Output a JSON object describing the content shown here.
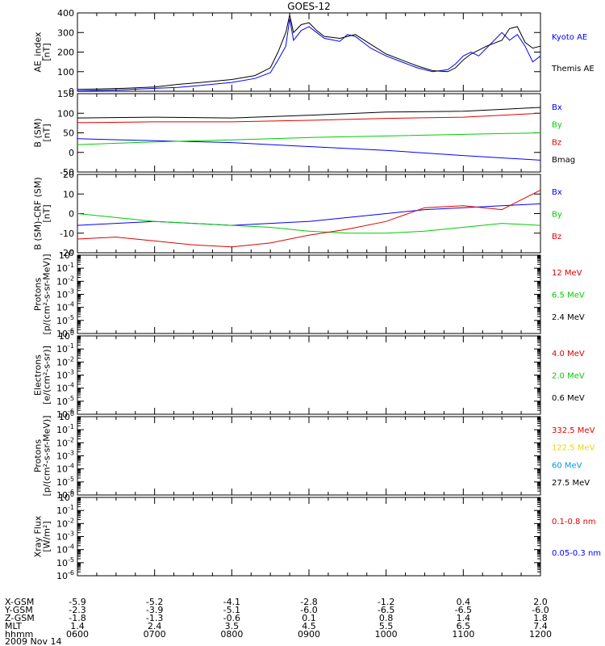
{
  "title": "GOES-12",
  "colors": {
    "black": "#000000",
    "blue": "#0000ff",
    "red": "#e00000",
    "green": "#00cc00",
    "yellow": "#e8d800",
    "cyan": "#0099dd"
  },
  "chart_data": [
    {
      "type": "line",
      "ylabel": "AE_index\n[nT]",
      "ylim": [
        0,
        400
      ],
      "yticks": [
        "0",
        "100",
        "200",
        "300",
        "400"
      ],
      "log": false,
      "series": [
        {
          "name": "Kyoto AE",
          "color": "blue",
          "x": [
            6.0,
            6.3,
            6.6,
            7.0,
            7.3,
            7.6,
            8.0,
            8.3,
            8.5,
            8.6,
            8.7,
            8.75,
            8.8,
            8.9,
            9.0,
            9.1,
            9.2,
            9.4,
            9.5,
            9.6,
            9.8,
            10.0,
            10.2,
            10.4,
            10.6,
            10.8,
            10.9,
            11.0,
            11.1,
            11.2,
            11.3,
            11.5,
            11.6,
            11.7,
            11.8,
            11.9,
            12.0
          ],
          "y": [
            2,
            5,
            8,
            15,
            20,
            30,
            45,
            65,
            95,
            160,
            230,
            370,
            260,
            310,
            330,
            300,
            270,
            255,
            290,
            280,
            220,
            180,
            150,
            120,
            100,
            110,
            140,
            180,
            200,
            180,
            220,
            300,
            260,
            290,
            230,
            150,
            180
          ]
        },
        {
          "name": "Themis AE",
          "color": "black",
          "x": [
            6.0,
            6.3,
            6.6,
            7.0,
            7.3,
            7.6,
            8.0,
            8.3,
            8.5,
            8.6,
            8.7,
            8.75,
            8.8,
            8.9,
            9.0,
            9.1,
            9.2,
            9.4,
            9.5,
            9.6,
            9.8,
            10.0,
            10.2,
            10.4,
            10.6,
            10.8,
            10.9,
            11.0,
            11.1,
            11.2,
            11.3,
            11.5,
            11.6,
            11.7,
            11.8,
            11.9,
            12.0
          ],
          "y": [
            10,
            12,
            15,
            22,
            35,
            45,
            60,
            80,
            120,
            200,
            300,
            390,
            300,
            340,
            350,
            310,
            280,
            270,
            280,
            290,
            240,
            190,
            160,
            130,
            105,
            100,
            120,
            160,
            190,
            210,
            230,
            260,
            320,
            330,
            250,
            220,
            230
          ]
        }
      ],
      "legend": [
        {
          "text": "Kyoto AE",
          "color": "blue"
        },
        {
          "text": "Themis AE",
          "color": "black"
        }
      ]
    },
    {
      "type": "line",
      "ylabel": "B (SM)\n[nT]",
      "ylim": [
        -50,
        150
      ],
      "yticks": [
        "-50",
        "0",
        "50",
        "100",
        "150"
      ],
      "log": false,
      "series": [
        {
          "name": "Bx",
          "color": "blue",
          "x": [
            6.0,
            7.0,
            8.0,
            9.0,
            10.0,
            11.0,
            12.0
          ],
          "y": [
            35,
            30,
            25,
            15,
            5,
            -8,
            -20
          ]
        },
        {
          "name": "By",
          "color": "green",
          "x": [
            6.0,
            7.0,
            8.0,
            9.0,
            10.0,
            11.0,
            12.0
          ],
          "y": [
            20,
            27,
            32,
            38,
            42,
            46,
            50
          ]
        },
        {
          "name": "Bz",
          "color": "red",
          "x": [
            6.0,
            7.0,
            8.0,
            9.0,
            10.0,
            11.0,
            12.0
          ],
          "y": [
            76,
            78,
            78,
            82,
            87,
            90,
            100
          ]
        },
        {
          "name": "Bmag",
          "color": "black",
          "x": [
            6.0,
            7.0,
            8.0,
            9.0,
            10.0,
            11.0,
            12.0
          ],
          "y": [
            88,
            90,
            88,
            95,
            103,
            105,
            115
          ]
        }
      ],
      "legend": [
        {
          "text": "Bx",
          "color": "blue"
        },
        {
          "text": "By",
          "color": "green"
        },
        {
          "text": "Bz",
          "color": "red"
        },
        {
          "text": "Bmag",
          "color": "black"
        }
      ]
    },
    {
      "type": "line",
      "ylabel": "B (SM)-CRF (SM)\n[nT]",
      "ylim": [
        -20,
        20
      ],
      "yticks": [
        "-20",
        "-10",
        "0",
        "10",
        "20"
      ],
      "log": false,
      "series": [
        {
          "name": "Bx",
          "color": "blue",
          "x": [
            6.0,
            6.5,
            7.0,
            7.5,
            8.0,
            8.5,
            9.0,
            9.5,
            10.0,
            10.5,
            11.0,
            11.5,
            12.0
          ],
          "y": [
            -6,
            -5,
            -4,
            -5,
            -6,
            -5,
            -4,
            -2,
            0,
            2,
            3,
            4,
            5
          ]
        },
        {
          "name": "By",
          "color": "green",
          "x": [
            6.0,
            6.5,
            7.0,
            7.5,
            8.0,
            8.5,
            9.0,
            9.5,
            10.0,
            10.5,
            11.0,
            11.5,
            12.0
          ],
          "y": [
            0,
            -2,
            -4,
            -5,
            -6,
            -7,
            -9,
            -10,
            -10,
            -9,
            -7,
            -5,
            -6
          ]
        },
        {
          "name": "Bz",
          "color": "red",
          "x": [
            6.0,
            6.5,
            7.0,
            7.5,
            8.0,
            8.5,
            9.0,
            9.5,
            10.0,
            10.5,
            11.0,
            11.5,
            12.0
          ],
          "y": [
            -13,
            -12,
            -14,
            -16,
            -17,
            -15,
            -11,
            -8,
            -4,
            3,
            4,
            2,
            12
          ]
        }
      ],
      "legend": [
        {
          "text": "Bx",
          "color": "blue"
        },
        {
          "text": "By",
          "color": "green"
        },
        {
          "text": "Bz",
          "color": "red"
        }
      ]
    },
    {
      "type": "line",
      "ylabel": "Protons\n[p/(cm²-s-sr-MeV)]",
      "log": true,
      "ylim_exp": [
        -6,
        0
      ],
      "ytick_exps": [
        -6,
        -5,
        -4,
        -3,
        -2,
        -1,
        0
      ],
      "series": [],
      "legend": [
        {
          "text": "12 MeV",
          "color": "red"
        },
        {
          "text": "6.5 MeV",
          "color": "green"
        },
        {
          "text": "2.4 MeV",
          "color": "black"
        }
      ]
    },
    {
      "type": "line",
      "ylabel": "Electrons\n[e/(cm²-s-sr)]",
      "log": true,
      "ylim_exp": [
        -6,
        0
      ],
      "ytick_exps": [
        -6,
        -5,
        -4,
        -3,
        -2,
        -1,
        0
      ],
      "series": [],
      "legend": [
        {
          "text": "4.0 MeV",
          "color": "red"
        },
        {
          "text": "2.0 MeV",
          "color": "green"
        },
        {
          "text": "0.6 MeV",
          "color": "black"
        }
      ]
    },
    {
      "type": "line",
      "ylabel": "Protons\n[p/(cm²-s-sr-MeV)]",
      "log": true,
      "ylim_exp": [
        -6,
        0
      ],
      "ytick_exps": [
        -6,
        -5,
        -4,
        -3,
        -2,
        -1,
        0
      ],
      "series": [],
      "legend": [
        {
          "text": "332.5 MeV",
          "color": "red"
        },
        {
          "text": "122.5 MeV",
          "color": "yellow"
        },
        {
          "text": "60 MeV",
          "color": "cyan"
        },
        {
          "text": "27.5 MeV",
          "color": "black"
        }
      ]
    },
    {
      "type": "line",
      "ylabel": "Xray Flux\n[W/m²]",
      "log": true,
      "ylim_exp": [
        -6,
        0
      ],
      "ytick_exps": [
        -6,
        -5,
        -4,
        -3,
        -2,
        -1,
        0
      ],
      "series": [],
      "legend": [
        {
          "text": "0.1-0.8 nm",
          "color": "red"
        },
        {
          "text": "0.05-0.3 nm",
          "color": "blue"
        }
      ]
    }
  ],
  "x_axis": {
    "xlim": [
      6,
      12
    ],
    "row_labels": [
      "X-GSM",
      "Y-GSM",
      "Z-GSM",
      "MLT",
      "hhmm"
    ],
    "columns": [
      {
        "x": 6,
        "vals": [
          "-5.9",
          "-2.3",
          "-1.8",
          "1.4",
          "0600"
        ]
      },
      {
        "x": 7,
        "vals": [
          "-5.2",
          "-3.9",
          "-1.3",
          "2.4",
          "0700"
        ]
      },
      {
        "x": 8,
        "vals": [
          "-4.1",
          "-5.1",
          "-0.6",
          "3.5",
          "0800"
        ]
      },
      {
        "x": 9,
        "vals": [
          "-2.8",
          "-6.0",
          "0.1",
          "4.5",
          "0900"
        ]
      },
      {
        "x": 10,
        "vals": [
          "-1.2",
          "-6.5",
          "0.8",
          "5.5",
          "1000"
        ]
      },
      {
        "x": 11,
        "vals": [
          "0.4",
          "-6.5",
          "1.4",
          "6.5",
          "1100"
        ]
      },
      {
        "x": 12,
        "vals": [
          "2.0",
          "-6.0",
          "1.8",
          "7.4",
          "1200"
        ]
      }
    ],
    "date": "2009 Nov 14"
  }
}
